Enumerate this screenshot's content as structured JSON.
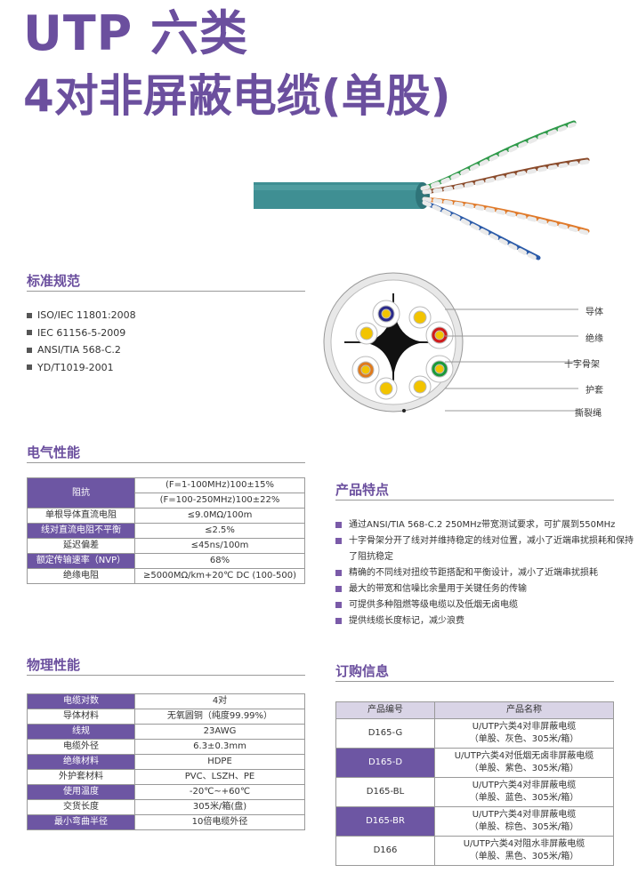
{
  "title": {
    "line1": "UTP 六类",
    "line2": "4对非屏蔽电缆(单股)"
  },
  "standards": {
    "heading": "标准规范",
    "items": [
      "ISO/IEC  11801:2008",
      "IEC 61156-5-2009",
      "ANSI/TIA 568-C.2",
      "YD/T1019-2001"
    ]
  },
  "diagram": {
    "labels": [
      "导体",
      "绝缘",
      "十字骨架",
      "护套",
      "撕裂绳"
    ]
  },
  "electrical": {
    "heading": "电气性能",
    "rows": [
      {
        "label": "阻抗",
        "value": "(F=1-100MHz)100±15%",
        "value2": "(F=100-250MHz)100±22%"
      },
      {
        "label": "单根导体直流电阻",
        "value": "≤9.0MΩ/100m"
      },
      {
        "label": "线对直流电阻不平衡",
        "value": "≤2.5%"
      },
      {
        "label": "延迟偏差",
        "value": "≤45ns/100m"
      },
      {
        "label": "额定传输速率（NVP）",
        "value": "68%"
      },
      {
        "label": "绝缘电阻",
        "value": "≥5000MΩ/km+20℃ DC (100-500)"
      }
    ]
  },
  "features": {
    "heading": "产品特点",
    "items": [
      "通过ANSI/TIA 568-C.2 250MHz带宽测试要求，可扩展到550MHz",
      "十字骨架分开了线对并维持稳定的线对位置，减小了近端串扰损耗和保持了阻抗稳定",
      "精确的不同线对扭绞节距搭配和平衡设计，减小了近端串扰损耗",
      "最大的带宽和信噪比余量用于关键任务的传输",
      "可提供多种阻燃等级电缆以及低烟无卤电缆",
      "提供线缆长度标记，减少浪费"
    ]
  },
  "physical": {
    "heading": "物理性能",
    "rows": [
      {
        "label": "电缆对数",
        "value": "4对"
      },
      {
        "label": "导体材料",
        "value": "无氧圆铜（纯度99.99%）"
      },
      {
        "label": "线规",
        "value": "23AWG"
      },
      {
        "label": "电缆外径",
        "value": "6.3±0.3mm"
      },
      {
        "label": "绝缘材料",
        "value": "HDPE"
      },
      {
        "label": "外护套材料",
        "value": "PVC、LSZH、PE"
      },
      {
        "label": "使用温度",
        "value": "-20℃~+60℃"
      },
      {
        "label": "交货长度",
        "value": "305米/箱(盘)"
      },
      {
        "label": "最小弯曲半径",
        "value": "10倍电缆外径"
      }
    ]
  },
  "order": {
    "heading": "订购信息",
    "col_code": "产品编号",
    "col_name": "产品名称",
    "rows": [
      {
        "code": "D165-G",
        "name1": "U/UTP六类4对非屏蔽电缆",
        "name2": "（单股、灰色、305米/箱）"
      },
      {
        "code": "D165-D",
        "name1": "U/UTP六类4对低烟无卤非屏蔽电缆",
        "name2": "（单股、紫色、305米/箱）"
      },
      {
        "code": "D165-BL",
        "name1": "U/UTP六类4对非屏蔽电缆",
        "name2": "（单股、蓝色、305米/箱）"
      },
      {
        "code": "D165-BR",
        "name1": "U/UTP六类4对非屏蔽电缆",
        "name2": "（单股、棕色、305米/箱）"
      },
      {
        "code": "D166",
        "name1": "U/UTP六类4对阻水非屏蔽电缆",
        "name2": "（单股、黑色、305米/箱）"
      }
    ]
  },
  "colors": {
    "accent": "#6b4f9e",
    "highlight_cell": "#6d56a3",
    "cable_jacket": "#3f8f93"
  }
}
